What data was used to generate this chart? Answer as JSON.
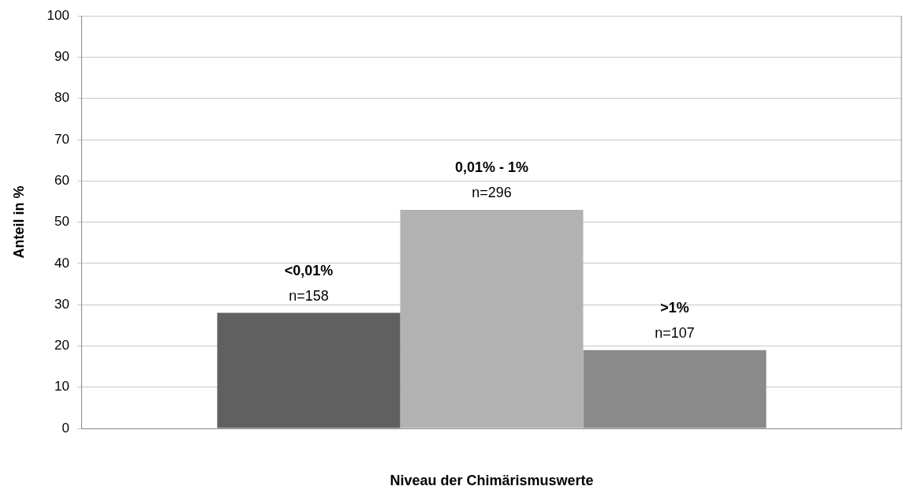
{
  "chart_data": {
    "type": "bar",
    "xlabel": "Niveau der Chimärismuswerte",
    "ylabel": "Anteil in %",
    "categories": [
      null
    ],
    "series": [
      {
        "name": "<0,01%",
        "color": "#606060",
        "values": [
          28
        ]
      },
      {
        "name": "0,01% - 1%",
        "color": "#b2b2b2",
        "values": [
          53
        ]
      },
      {
        "name": ">1%",
        "color": "#8a8a8a",
        "values": [
          19
        ]
      }
    ],
    "annotations": [
      {
        "text": "n=158",
        "y": 28
      },
      {
        "text": "n=296",
        "y": 53
      },
      {
        "text": "n=107",
        "y": 19
      }
    ],
    "ylim": [
      0,
      100
    ],
    "yticks": [
      0,
      10,
      20,
      30,
      40,
      50,
      60,
      70,
      80,
      90,
      100
    ],
    "grid": "y",
    "legend": false
  }
}
